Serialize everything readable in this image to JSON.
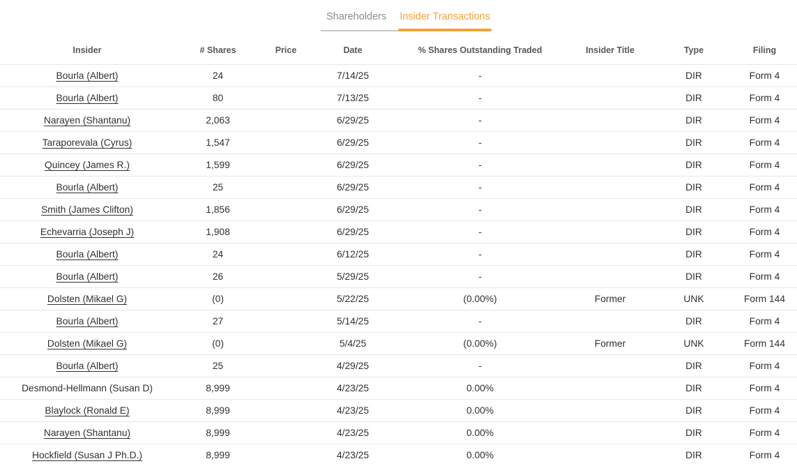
{
  "colors": {
    "accent": "#F2A43A",
    "tab_inactive_text": "#8C8C8C",
    "header_text": "#575757",
    "body_text": "#303030",
    "row_border": "#E6E6E6",
    "inactive_tab_underline": "#C7C7C7"
  },
  "tabs": [
    {
      "label": "Shareholders",
      "active": false
    },
    {
      "label": "Insider Transactions",
      "active": true
    }
  ],
  "table": {
    "columns": [
      "Insider",
      "# Shares",
      "Price",
      "Date",
      "% Shares Outstanding Traded",
      "Insider Title",
      "Type",
      "Filing"
    ],
    "rows": [
      {
        "insider": "Bourla (Albert)",
        "link": true,
        "shares": "24",
        "price": "",
        "date": "7/14/25",
        "pct_traded": "-",
        "insider_title": "",
        "type": "DIR",
        "filing": "Form 4"
      },
      {
        "insider": "Bourla (Albert)",
        "link": true,
        "shares": "80",
        "price": "",
        "date": "7/13/25",
        "pct_traded": "-",
        "insider_title": "",
        "type": "DIR",
        "filing": "Form 4"
      },
      {
        "insider": "Narayen (Shantanu)",
        "link": true,
        "shares": "2,063",
        "price": "",
        "date": "6/29/25",
        "pct_traded": "-",
        "insider_title": "",
        "type": "DIR",
        "filing": "Form 4"
      },
      {
        "insider": "Taraporevala (Cyrus)",
        "link": true,
        "shares": "1,547",
        "price": "",
        "date": "6/29/25",
        "pct_traded": "-",
        "insider_title": "",
        "type": "DIR",
        "filing": "Form 4"
      },
      {
        "insider": "Quincey (James R.)",
        "link": true,
        "shares": "1,599",
        "price": "",
        "date": "6/29/25",
        "pct_traded": "-",
        "insider_title": "",
        "type": "DIR",
        "filing": "Form 4"
      },
      {
        "insider": "Bourla (Albert)",
        "link": true,
        "shares": "25",
        "price": "",
        "date": "6/29/25",
        "pct_traded": "-",
        "insider_title": "",
        "type": "DIR",
        "filing": "Form 4"
      },
      {
        "insider": "Smith (James Clifton)",
        "link": true,
        "shares": "1,856",
        "price": "",
        "date": "6/29/25",
        "pct_traded": "-",
        "insider_title": "",
        "type": "DIR",
        "filing": "Form 4"
      },
      {
        "insider": "Echevarria (Joseph J)",
        "link": true,
        "shares": "1,908",
        "price": "",
        "date": "6/29/25",
        "pct_traded": "-",
        "insider_title": "",
        "type": "DIR",
        "filing": "Form 4"
      },
      {
        "insider": "Bourla (Albert)",
        "link": true,
        "shares": "24",
        "price": "",
        "date": "6/12/25",
        "pct_traded": "-",
        "insider_title": "",
        "type": "DIR",
        "filing": "Form 4"
      },
      {
        "insider": "Bourla (Albert)",
        "link": true,
        "shares": "26",
        "price": "",
        "date": "5/29/25",
        "pct_traded": "-",
        "insider_title": "",
        "type": "DIR",
        "filing": "Form 4"
      },
      {
        "insider": "Dolsten (Mikael G)",
        "link": true,
        "shares": "(0)",
        "price": "",
        "date": "5/22/25",
        "pct_traded": "(0.00%)",
        "insider_title": "Former",
        "type": "UNK",
        "filing": "Form 144"
      },
      {
        "insider": "Bourla (Albert)",
        "link": true,
        "shares": "27",
        "price": "",
        "date": "5/14/25",
        "pct_traded": "-",
        "insider_title": "",
        "type": "DIR",
        "filing": "Form 4"
      },
      {
        "insider": "Dolsten (Mikael G)",
        "link": true,
        "shares": "(0)",
        "price": "",
        "date": "5/4/25",
        "pct_traded": "(0.00%)",
        "insider_title": "Former",
        "type": "UNK",
        "filing": "Form 144"
      },
      {
        "insider": "Bourla (Albert)",
        "link": true,
        "shares": "25",
        "price": "",
        "date": "4/29/25",
        "pct_traded": "-",
        "insider_title": "",
        "type": "DIR",
        "filing": "Form 4"
      },
      {
        "insider": "Desmond-Hellmann (Susan D)",
        "link": false,
        "shares": "8,999",
        "price": "",
        "date": "4/23/25",
        "pct_traded": "0.00%",
        "insider_title": "",
        "type": "DIR",
        "filing": "Form 4"
      },
      {
        "insider": "Blaylock (Ronald E)",
        "link": true,
        "shares": "8,999",
        "price": "",
        "date": "4/23/25",
        "pct_traded": "0.00%",
        "insider_title": "",
        "type": "DIR",
        "filing": "Form 4"
      },
      {
        "insider": "Narayen (Shantanu)",
        "link": true,
        "shares": "8,999",
        "price": "",
        "date": "4/23/25",
        "pct_traded": "0.00%",
        "insider_title": "",
        "type": "DIR",
        "filing": "Form 4"
      },
      {
        "insider": "Hockfield (Susan J Ph.D.)",
        "link": true,
        "shares": "8,999",
        "price": "",
        "date": "4/23/25",
        "pct_traded": "0.00%",
        "insider_title": "",
        "type": "DIR",
        "filing": "Form 4"
      }
    ]
  }
}
